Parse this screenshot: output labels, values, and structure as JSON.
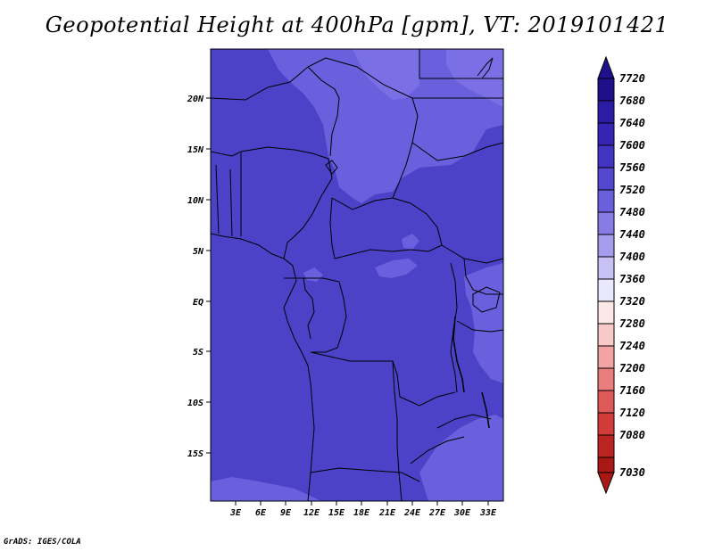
{
  "title": "Geopotential Height at 400hPa [gpm], VT: 2019101421",
  "credit": "GrADS: IGES/COLA",
  "map": {
    "lat_labels": [
      "20N",
      "15N",
      "10N",
      "5N",
      "EQ",
      "5S",
      "10S",
      "15S"
    ],
    "lon_labels": [
      "3E",
      "6E",
      "9E",
      "12E",
      "15E",
      "18E",
      "21E",
      "24E",
      "27E",
      "30E",
      "33E"
    ],
    "background_color": "#4b42c8",
    "shade_colors": {
      "dominant": "#4b42c8",
      "lighter": "#6a5fdc",
      "lightest": "#7b6fe6",
      "darker": "#4034be"
    }
  },
  "colorbar": {
    "labels": [
      "7720",
      "7680",
      "7640",
      "7600",
      "7560",
      "7520",
      "7480",
      "7440",
      "7400",
      "7360",
      "7320",
      "7280",
      "7240",
      "7200",
      "7160",
      "7120",
      "7080",
      "7030"
    ],
    "colors": [
      "#1f0f8a",
      "#2a1ca3",
      "#3624b5",
      "#4234c3",
      "#5346cf",
      "#6a5fdc",
      "#877be6",
      "#a59cee",
      "#c7c1f5",
      "#eae8fc",
      "#fde8e8",
      "#f9c9c8",
      "#f2a3a2",
      "#e97e7d",
      "#de5a58",
      "#d13b38",
      "#bc2422",
      "#a81814"
    ]
  }
}
